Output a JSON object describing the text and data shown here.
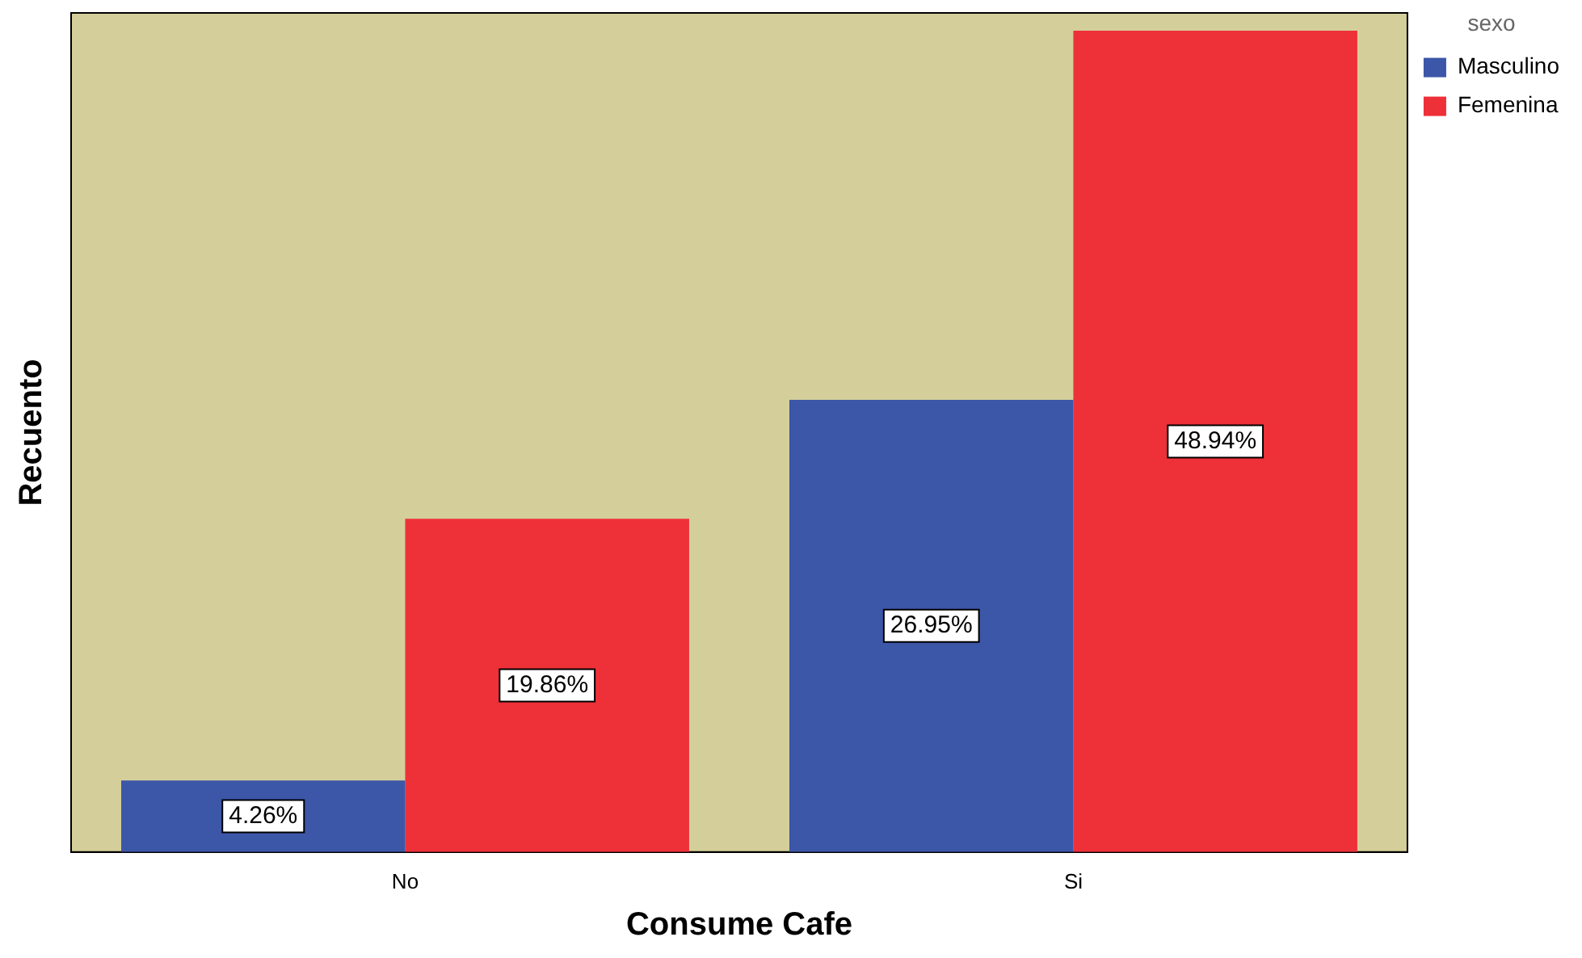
{
  "chart_data": {
    "type": "bar",
    "xlabel": "Consume Cafe",
    "ylabel": "Recuento",
    "legend_title": "sexo",
    "categories": [
      "No",
      "Si"
    ],
    "series": [
      {
        "name": "Masculino",
        "color": "#3c56a8",
        "values": [
          4.26,
          26.95
        ],
        "value_labels": [
          "4.26%",
          "26.95%"
        ]
      },
      {
        "name": "Femenina",
        "color": "#ee3039",
        "values": [
          19.86,
          48.94
        ],
        "value_labels": [
          "19.86%",
          "48.94%"
        ]
      }
    ],
    "grid": false,
    "legend": "top right",
    "tick_labels": "x"
  }
}
